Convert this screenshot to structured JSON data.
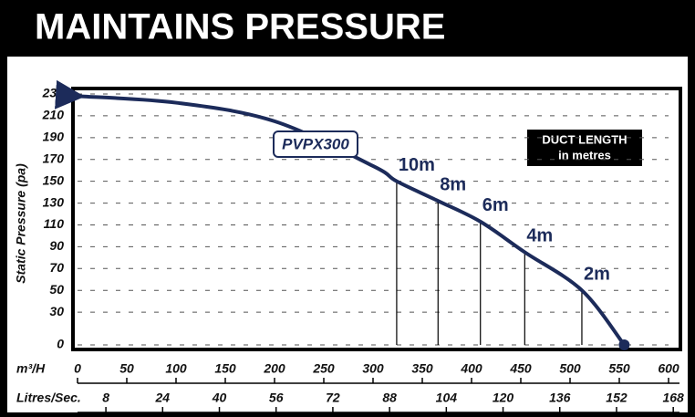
{
  "chart_data": {
    "type": "line",
    "title": "MAINTAINS PRESSURE",
    "y_label": "Static Pressure (pa)",
    "x_label": "m³/H",
    "x2_label": "Litres/Sec.",
    "xlim": [
      0,
      600
    ],
    "xticks": [
      0,
      50,
      100,
      150,
      200,
      250,
      300,
      350,
      400,
      450,
      500,
      550,
      600
    ],
    "x2lim": [
      0,
      166.67
    ],
    "x2ticks": [
      8,
      24,
      40,
      56,
      72,
      88,
      104,
      120,
      136,
      152,
      168
    ],
    "ylim": [
      0,
      230
    ],
    "yticks": [
      0,
      30,
      50,
      70,
      90,
      110,
      130,
      150,
      170,
      190,
      210,
      230
    ],
    "grid": true,
    "series": [
      {
        "name": "PVPX300",
        "color": "#1c2b5a",
        "x": [
          0,
          100,
          200,
          300,
          324,
          366,
          409,
          454,
          512,
          555
        ],
        "values": [
          228,
          222,
          205,
          164,
          150,
          132,
          113,
          85,
          50,
          0
        ]
      }
    ],
    "annotations": [
      {
        "label": "10m",
        "x": 324,
        "y": 150
      },
      {
        "label": "8m",
        "x": 366,
        "y": 132
      },
      {
        "label": "6m",
        "x": 409,
        "y": 113
      },
      {
        "label": "4m",
        "x": 454,
        "y": 85
      },
      {
        "label": "2m",
        "x": 512,
        "y": 50
      }
    ],
    "legend_title": "DUCT LENGTH",
    "legend_subtitle": "in metres"
  }
}
